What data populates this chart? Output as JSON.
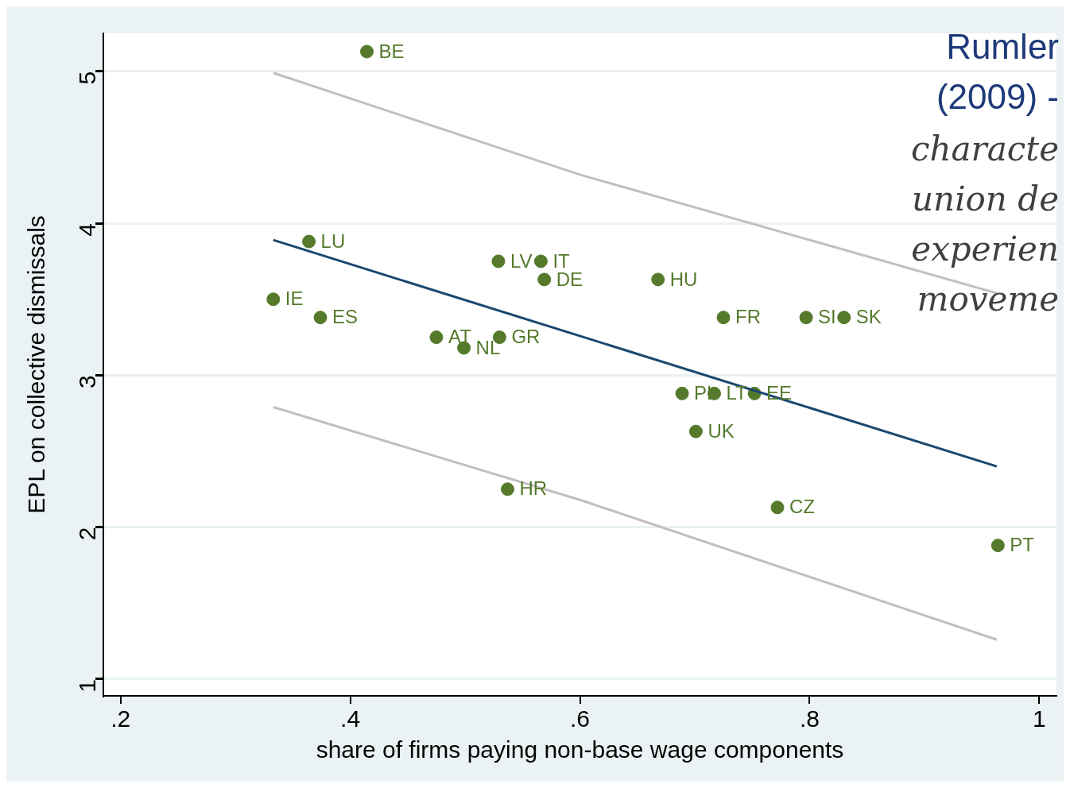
{
  "chart_data": {
    "type": "scatter",
    "xlabel": "share of firms paying non-base wage components",
    "ylabel": "EPL on collective dismissals",
    "xlim": [
      0.185,
      1.015
    ],
    "ylim": [
      0.89,
      5.25
    ],
    "xticks": [
      {
        "value": 0.2,
        "label": ".2"
      },
      {
        "value": 0.4,
        "label": ".4"
      },
      {
        "value": 0.6,
        "label": ".6"
      },
      {
        "value": 0.8,
        "label": ".8"
      },
      1
    ],
    "yticks": [
      1,
      2,
      3,
      4,
      5
    ],
    "grid": "y",
    "legend": false,
    "annotations": [
      "Rumler",
      "(2009) -",
      "characte",
      "union de",
      "experien",
      "moveme"
    ],
    "series": [
      {
        "type": "scatter",
        "marker": "circle",
        "color": "#557a2c",
        "x": [
          0.4145,
          0.364,
          0.529,
          0.566,
          0.569,
          0.668,
          0.333,
          0.374,
          0.725,
          0.797,
          0.83,
          0.475,
          0.53,
          0.499,
          0.689,
          0.717,
          0.752,
          0.701,
          0.537,
          0.772,
          0.964
        ],
        "values": [
          5.13,
          3.88,
          3.75,
          3.75,
          3.63,
          3.63,
          3.5,
          3.38,
          3.38,
          3.38,
          3.38,
          3.25,
          3.25,
          3.18,
          2.88,
          2.88,
          2.88,
          2.63,
          2.25,
          2.13,
          1.88
        ],
        "value_labels": [
          "BE",
          "LU",
          "LV",
          "IT",
          "DE",
          "HU",
          "IE",
          "ES",
          "FR",
          "SI",
          "SK",
          "AT",
          "GR",
          "NL",
          "PL",
          "LT",
          "EE",
          "UK",
          "HR",
          "CZ",
          "PT"
        ]
      },
      {
        "type": "line",
        "color": "#1a476f",
        "x": [
          0.333,
          0.963
        ],
        "values": [
          3.89,
          2.4
        ]
      },
      {
        "type": "line",
        "color": "#c0c0c0",
        "x": [
          0.333,
          0.6,
          0.963
        ],
        "values": [
          4.99,
          4.32,
          3.54
        ]
      },
      {
        "type": "line",
        "color": "#c0c0c0",
        "x": [
          0.333,
          0.6,
          0.963
        ],
        "values": [
          2.79,
          2.18,
          1.26
        ]
      }
    ]
  }
}
